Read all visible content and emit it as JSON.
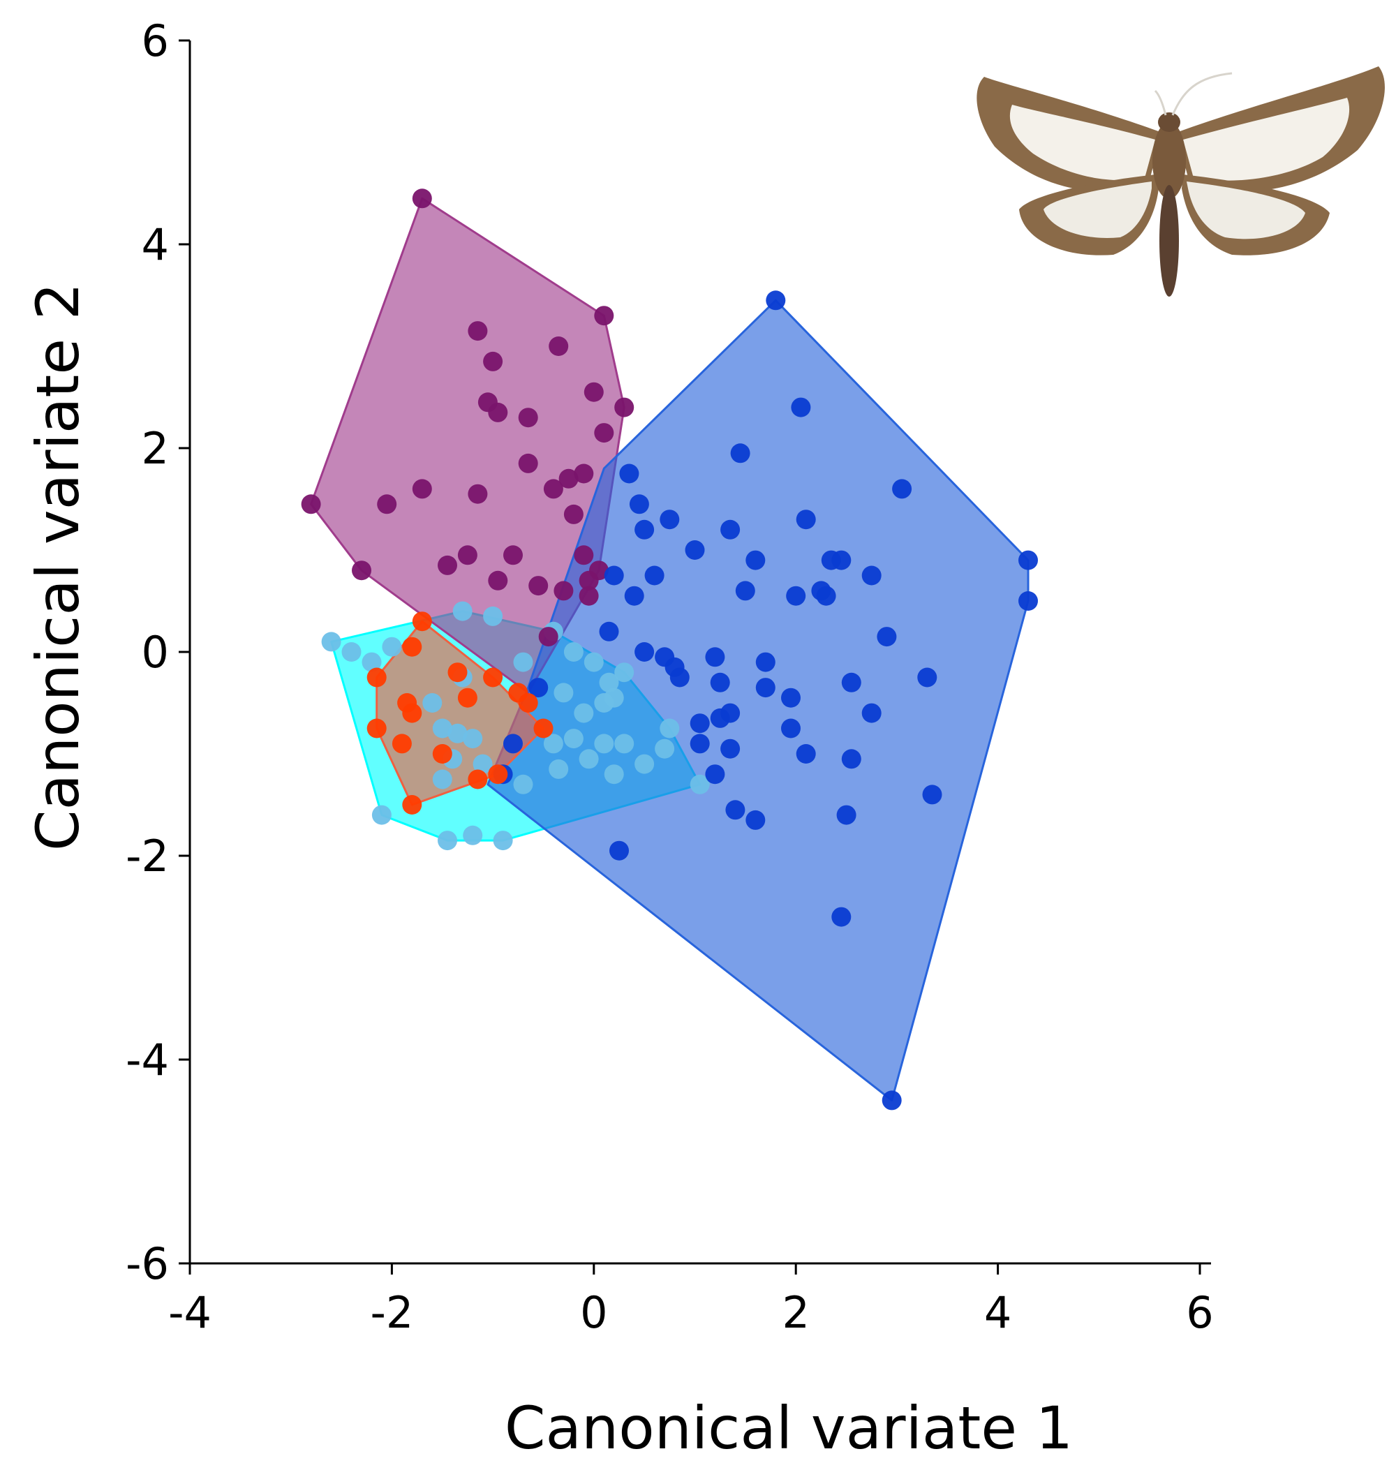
{
  "chart_data": {
    "type": "scatter",
    "title": "",
    "xlabel": "Canonical variate 1",
    "ylabel": "Canonical variate 2",
    "xlim": [
      -4,
      6
    ],
    "ylim": [
      -6,
      6
    ],
    "x_ticks": [
      "-4",
      "-2",
      "0",
      "2",
      "4",
      "6"
    ],
    "y_ticks": [
      "-6",
      "-4",
      "-2",
      "0",
      "2",
      "4",
      "6"
    ],
    "grid": false,
    "legend": "none",
    "inset_image": "moth-photo",
    "series": [
      {
        "color": "#6dbfe8",
        "hull_color": "#00ffff",
        "hull": [
          [
            -2.6,
            0.1
          ],
          [
            -1.3,
            0.4
          ],
          [
            -0.4,
            0.2
          ],
          [
            0.3,
            -0.2
          ],
          [
            0.75,
            -0.75
          ],
          [
            1.05,
            -1.3
          ],
          [
            -0.9,
            -1.85
          ],
          [
            -1.45,
            -1.85
          ],
          [
            -2.1,
            -1.6
          ]
        ],
        "points": [
          [
            -2.6,
            0.1
          ],
          [
            -2.4,
            0.0
          ],
          [
            -2.2,
            -0.1
          ],
          [
            -2.0,
            0.05
          ],
          [
            -1.3,
            0.4
          ],
          [
            -1.0,
            0.35
          ],
          [
            -0.7,
            -0.1
          ],
          [
            -0.4,
            0.2
          ],
          [
            -0.2,
            0.0
          ],
          [
            0.0,
            -0.1
          ],
          [
            0.15,
            -0.3
          ],
          [
            0.3,
            -0.2
          ],
          [
            -0.3,
            -0.4
          ],
          [
            -0.1,
            -0.6
          ],
          [
            0.1,
            -0.5
          ],
          [
            0.2,
            -0.45
          ],
          [
            -0.4,
            -0.9
          ],
          [
            -0.2,
            -0.85
          ],
          [
            -0.05,
            -1.05
          ],
          [
            0.1,
            -0.9
          ],
          [
            0.3,
            -0.9
          ],
          [
            0.5,
            -1.1
          ],
          [
            0.7,
            -0.95
          ],
          [
            0.75,
            -0.75
          ],
          [
            -0.35,
            -1.15
          ],
          [
            0.2,
            -1.2
          ],
          [
            -0.7,
            -1.3
          ],
          [
            1.05,
            -1.3
          ],
          [
            -0.9,
            -1.85
          ],
          [
            -1.2,
            -1.8
          ],
          [
            -1.45,
            -1.85
          ],
          [
            -2.1,
            -1.6
          ],
          [
            -1.6,
            -0.5
          ],
          [
            -1.3,
            -0.25
          ],
          [
            -1.5,
            -0.75
          ],
          [
            -1.35,
            -0.8
          ],
          [
            -1.2,
            -0.85
          ],
          [
            -1.1,
            -1.1
          ],
          [
            -1.5,
            -1.25
          ],
          [
            -1.4,
            -1.05
          ]
        ]
      },
      {
        "color": "#7a146c",
        "hull_color": "#a03c8c",
        "hull": [
          [
            -1.7,
            4.45
          ],
          [
            0.1,
            3.3
          ],
          [
            0.3,
            2.4
          ],
          [
            0.05,
            0.8
          ],
          [
            -0.65,
            -0.4
          ],
          [
            -2.3,
            0.8
          ],
          [
            -2.8,
            1.45
          ]
        ],
        "points": [
          [
            -1.7,
            4.45
          ],
          [
            0.1,
            3.3
          ],
          [
            -1.15,
            3.15
          ],
          [
            -0.35,
            3.0
          ],
          [
            -1.0,
            2.85
          ],
          [
            0.0,
            2.55
          ],
          [
            -1.05,
            2.45
          ],
          [
            -0.95,
            2.35
          ],
          [
            -0.65,
            2.3
          ],
          [
            0.3,
            2.4
          ],
          [
            0.1,
            2.15
          ],
          [
            -0.65,
            1.85
          ],
          [
            -0.25,
            1.7
          ],
          [
            -0.1,
            1.75
          ],
          [
            -0.4,
            1.6
          ],
          [
            -1.7,
            1.6
          ],
          [
            -1.15,
            1.55
          ],
          [
            -2.05,
            1.45
          ],
          [
            -2.8,
            1.45
          ],
          [
            -0.2,
            1.35
          ],
          [
            -1.25,
            0.95
          ],
          [
            -0.8,
            0.95
          ],
          [
            -1.45,
            0.85
          ],
          [
            -2.3,
            0.8
          ],
          [
            0.05,
            0.8
          ],
          [
            -0.95,
            0.7
          ],
          [
            -0.55,
            0.65
          ],
          [
            -0.3,
            0.6
          ],
          [
            -0.45,
            0.15
          ],
          [
            -0.05,
            0.7
          ],
          [
            -0.1,
            0.95
          ],
          [
            -0.05,
            0.55
          ]
        ]
      },
      {
        "color": "#0a3cd2",
        "hull_color": "#2864dc",
        "hull": [
          [
            1.8,
            3.45
          ],
          [
            4.3,
            0.9
          ],
          [
            4.3,
            0.5
          ],
          [
            2.95,
            -4.4
          ],
          [
            -1.05,
            -1.3
          ],
          [
            -0.65,
            -0.35
          ],
          [
            0.1,
            1.8
          ]
        ],
        "points": [
          [
            1.8,
            3.45
          ],
          [
            2.05,
            2.4
          ],
          [
            1.45,
            1.95
          ],
          [
            0.35,
            1.75
          ],
          [
            3.05,
            1.6
          ],
          [
            0.45,
            1.45
          ],
          [
            0.5,
            1.2
          ],
          [
            0.75,
            1.3
          ],
          [
            1.35,
            1.2
          ],
          [
            2.1,
            1.3
          ],
          [
            1.0,
            1.0
          ],
          [
            1.6,
            0.9
          ],
          [
            2.35,
            0.9
          ],
          [
            2.45,
            0.9
          ],
          [
            2.75,
            0.75
          ],
          [
            4.3,
            0.9
          ],
          [
            4.3,
            0.5
          ],
          [
            0.6,
            0.75
          ],
          [
            0.2,
            0.75
          ],
          [
            2.25,
            0.6
          ],
          [
            2.3,
            0.55
          ],
          [
            1.5,
            0.6
          ],
          [
            2.0,
            0.55
          ],
          [
            0.4,
            0.55
          ],
          [
            0.15,
            0.2
          ],
          [
            2.9,
            0.15
          ],
          [
            0.5,
            0.0
          ],
          [
            0.7,
            -0.05
          ],
          [
            0.8,
            -0.15
          ],
          [
            0.85,
            -0.25
          ],
          [
            1.2,
            -0.05
          ],
          [
            1.7,
            -0.1
          ],
          [
            1.25,
            -0.3
          ],
          [
            1.7,
            -0.35
          ],
          [
            3.3,
            -0.25
          ],
          [
            2.55,
            -0.3
          ],
          [
            1.35,
            -0.6
          ],
          [
            1.25,
            -0.65
          ],
          [
            1.95,
            -0.45
          ],
          [
            2.75,
            -0.6
          ],
          [
            1.05,
            -0.7
          ],
          [
            1.05,
            -0.9
          ],
          [
            1.35,
            -0.95
          ],
          [
            1.95,
            -0.75
          ],
          [
            2.1,
            -1.0
          ],
          [
            2.55,
            -1.05
          ],
          [
            1.2,
            -1.2
          ],
          [
            1.4,
            -1.55
          ],
          [
            1.6,
            -1.65
          ],
          [
            2.5,
            -1.6
          ],
          [
            3.35,
            -1.4
          ],
          [
            0.25,
            -1.95
          ],
          [
            2.45,
            -2.6
          ],
          [
            2.95,
            -4.4
          ],
          [
            -0.9,
            -1.2
          ],
          [
            -0.8,
            -0.9
          ],
          [
            -0.55,
            -0.35
          ]
        ]
      },
      {
        "color": "#ff3c00",
        "hull_color": "#f06040",
        "hull": [
          [
            -1.7,
            0.3
          ],
          [
            -1.0,
            -0.25
          ],
          [
            -0.5,
            -0.75
          ],
          [
            -0.95,
            -1.2
          ],
          [
            -1.8,
            -1.5
          ],
          [
            -2.15,
            -0.75
          ],
          [
            -2.15,
            -0.25
          ]
        ],
        "points": [
          [
            -1.7,
            0.3
          ],
          [
            -1.8,
            0.05
          ],
          [
            -2.15,
            -0.25
          ],
          [
            -1.35,
            -0.2
          ],
          [
            -1.0,
            -0.25
          ],
          [
            -0.75,
            -0.4
          ],
          [
            -1.85,
            -0.5
          ],
          [
            -1.25,
            -0.45
          ],
          [
            -1.8,
            -0.6
          ],
          [
            -0.65,
            -0.5
          ],
          [
            -2.15,
            -0.75
          ],
          [
            -1.5,
            -1.0
          ],
          [
            -0.5,
            -0.75
          ],
          [
            -1.9,
            -0.9
          ],
          [
            -1.15,
            -1.25
          ],
          [
            -0.95,
            -1.2
          ],
          [
            -1.8,
            -1.5
          ]
        ]
      }
    ]
  }
}
